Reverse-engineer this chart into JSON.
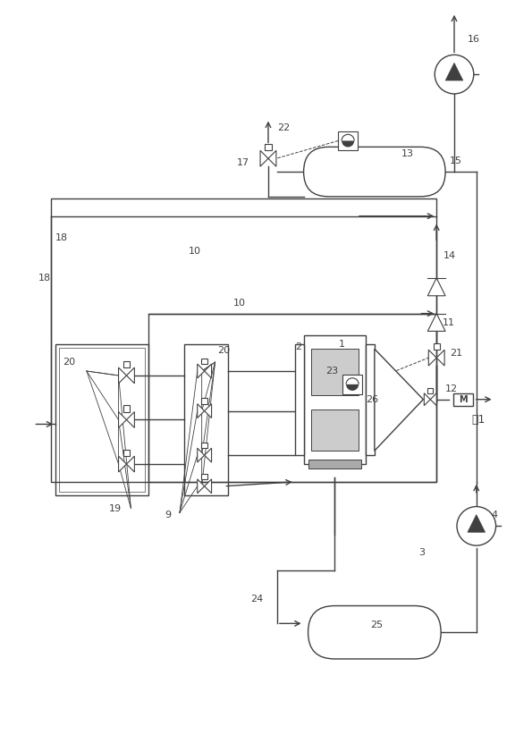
{
  "fig_width": 5.95,
  "fig_height": 8.31,
  "dpi": 100,
  "bg_color": "#ffffff",
  "lc": "#404040",
  "lw": 1.0,
  "lw_thin": 0.7
}
